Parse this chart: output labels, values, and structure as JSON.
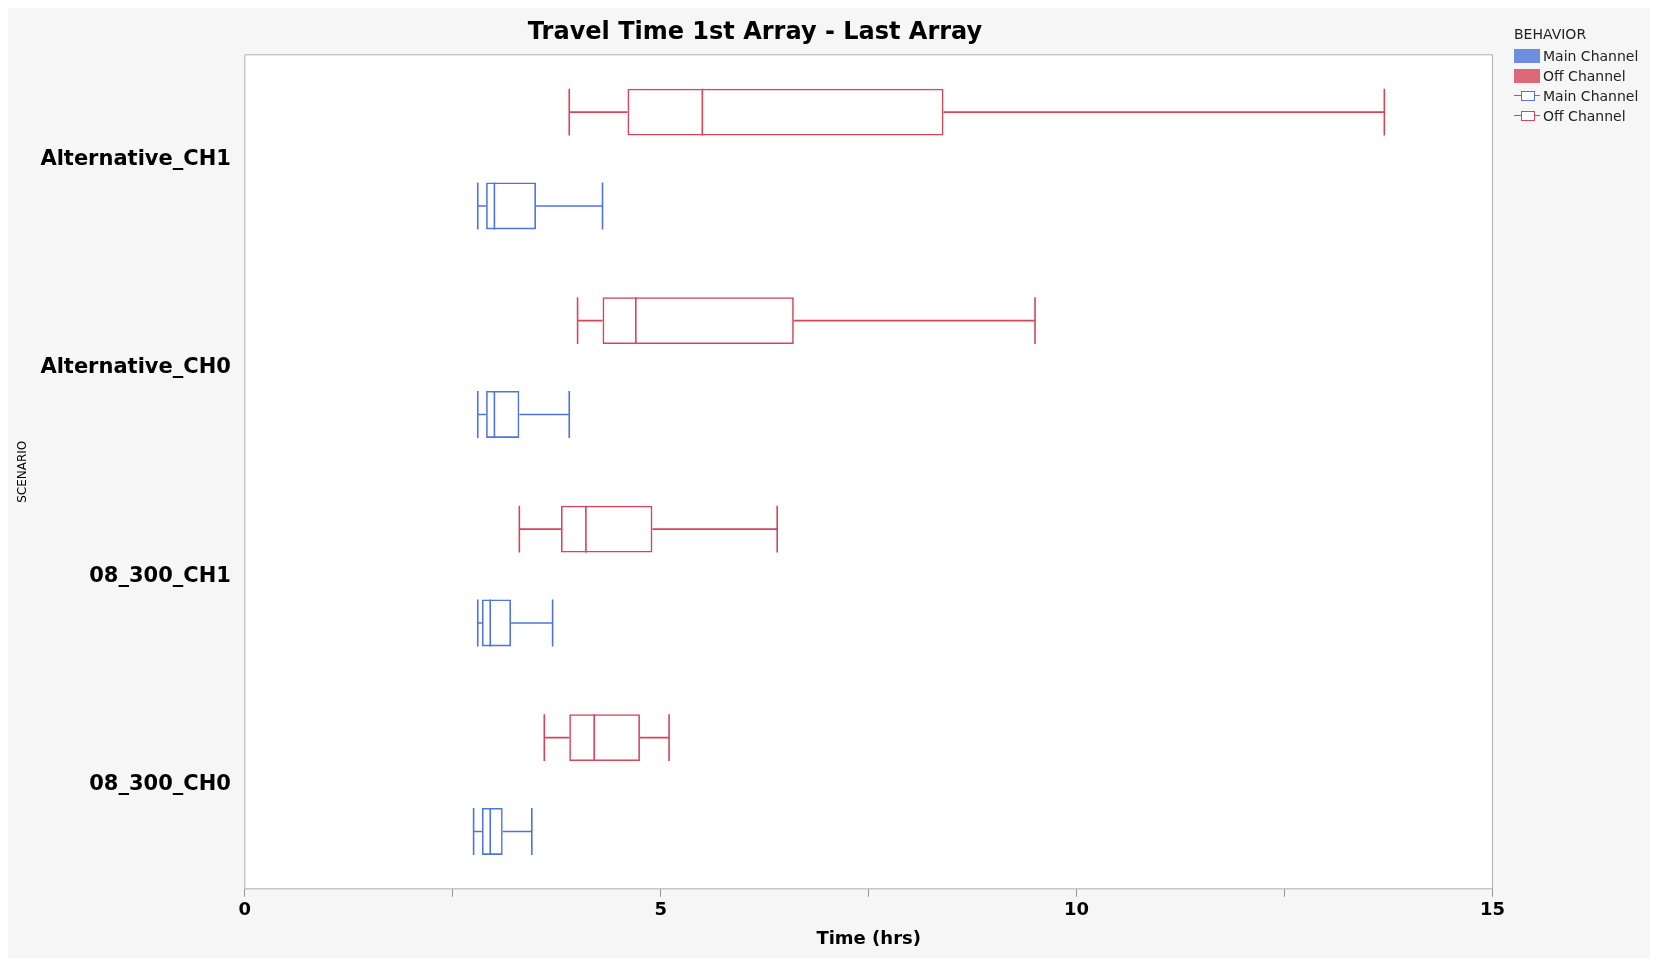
{
  "chart_data": {
    "type": "box",
    "title": "Travel Time 1st Array - Last Array",
    "xlabel": "Time (hrs)",
    "ylabel": "SCENARIO",
    "legend_title": "BEHAVIOR",
    "orientation": "horizontal",
    "categories": [
      "Alternative_CH1",
      "Alternative_CH0",
      "08_300_CH1",
      "08_300_CH0"
    ],
    "xlim": [
      0,
      15
    ],
    "xticks": [
      0,
      {
        "value": 2.5,
        "label": null
      },
      5,
      {
        "value": 7.5,
        "label": null
      },
      10,
      {
        "value": 12.5,
        "label": null
      },
      15
    ],
    "grid": false,
    "legend": "top right",
    "series": [
      {
        "name": "Main Channel",
        "color": "#4f74dc",
        "boxes": [
          {
            "low": 2.8,
            "q1": 2.9,
            "median": 3.0,
            "q3": 3.5,
            "high": 4.3
          },
          {
            "low": 2.8,
            "q1": 2.9,
            "median": 3.0,
            "q3": 3.3,
            "high": 3.9
          },
          {
            "low": 2.8,
            "q1": 2.85,
            "median": 2.95,
            "q3": 3.2,
            "high": 3.7
          },
          {
            "low": 2.75,
            "q1": 2.85,
            "median": 2.95,
            "q3": 3.1,
            "high": 3.45
          }
        ]
      },
      {
        "name": "Off Channel",
        "color": "#d6455a",
        "boxes": [
          {
            "low": 3.9,
            "q1": 4.6,
            "median": 5.5,
            "q3": 8.4,
            "high": 13.7
          },
          {
            "low": 4.0,
            "q1": 4.3,
            "median": 4.7,
            "q3": 6.6,
            "high": 9.5
          },
          {
            "low": 3.3,
            "q1": 3.8,
            "median": 4.1,
            "q3": 4.9,
            "high": 6.4
          },
          {
            "low": 3.6,
            "q1": 3.9,
            "median": 4.2,
            "q3": 4.75,
            "high": 5.1
          }
        ]
      }
    ]
  }
}
